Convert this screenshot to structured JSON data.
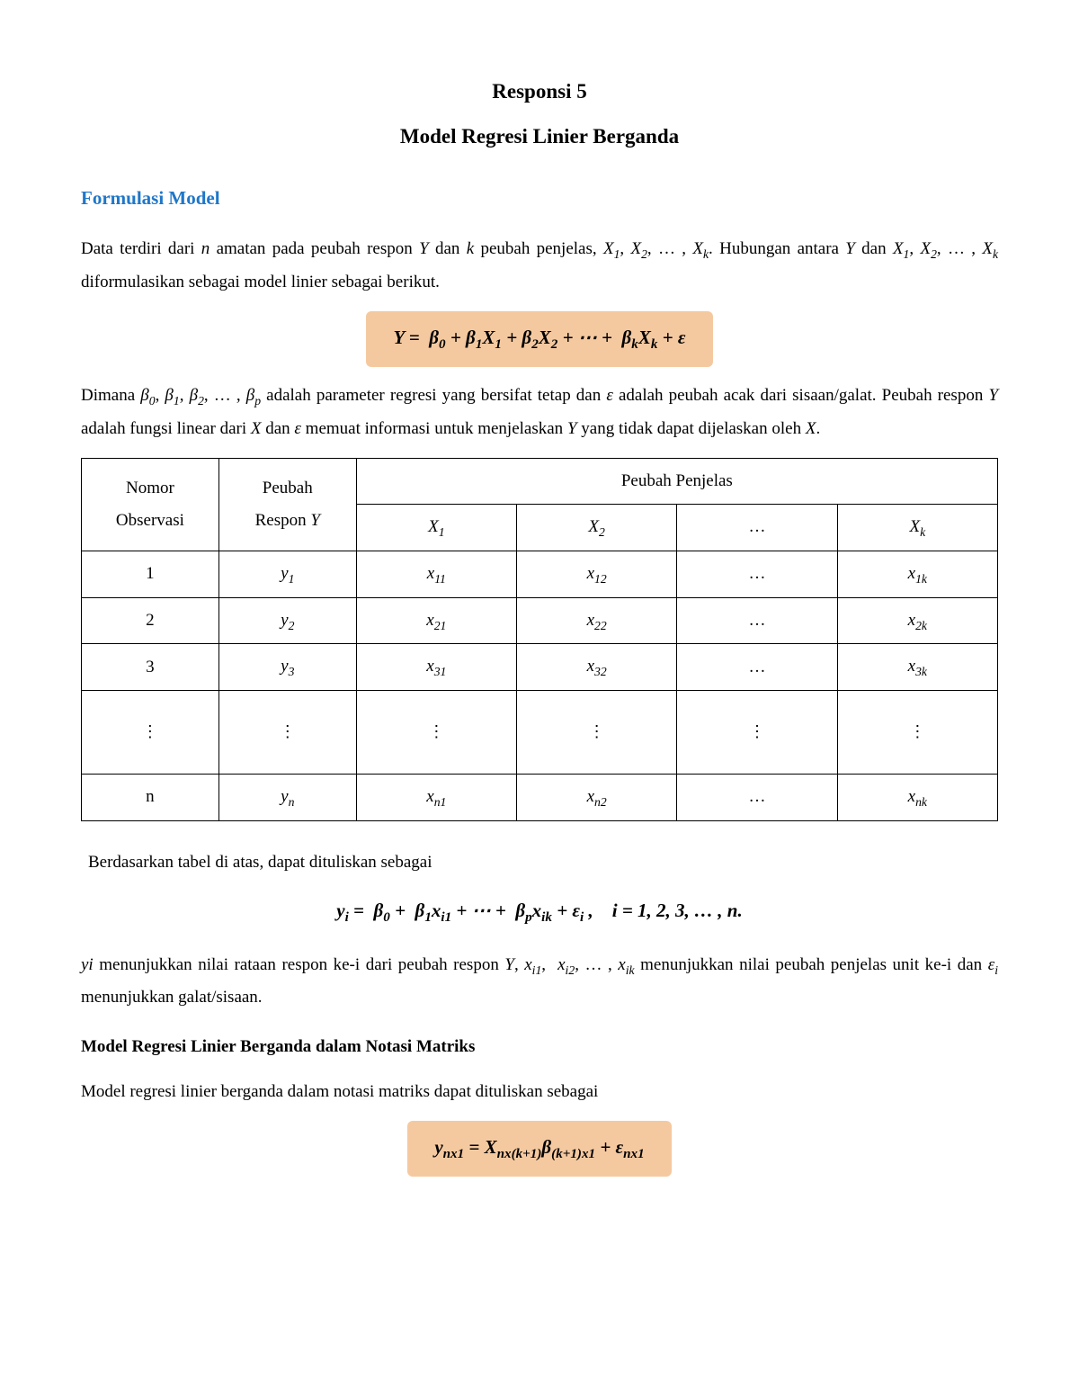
{
  "colors": {
    "heading_color": "#1f77c9",
    "formula_bg": "#f5c9a0",
    "text_color": "#000000",
    "page_bg": "#ffffff",
    "table_border": "#000000"
  },
  "typography": {
    "body_font": "Times New Roman",
    "body_size_pt": 14,
    "title_size_pt": 17,
    "heading_size_pt": 16,
    "line_height": 1.9
  },
  "title": {
    "line1": "Responsi 5",
    "line2": "Model Regresi Linier Berganda"
  },
  "section1_heading": "Formulasi Model",
  "para1_html": "Data terdiri dari <span class='ital'>n</span> amatan pada peubah respon <span class='ital'>Y</span> dan <span class='ital'>k</span> peubah penjelas, <span class='ital'>X</span><sub>1</sub>, <span class='ital'>X</span><sub>2</sub>, … , <span class='ital'>X<sub>k</sub></span>. Hubungan antara <span class='ital'>Y</span> dan <span class='ital'>X</span><sub>1</sub>, <span class='ital'>X</span><sub>2</sub>, … , <span class='ital'>X<sub>k</sub></span> diformulasikan sebagai model linier sebagai berikut.",
  "formula1_html": "Y = &nbsp;β<sub>0</sub> + β<sub>1</sub>X<sub>1</sub> + β<sub>2</sub>X<sub>2</sub> + ⋯ + &nbsp;β<sub>k</sub>X<sub>k</sub> + ε",
  "para2_html": "Dimana <span class='ital'>β</span><sub>0</sub>, <span class='ital'>β</span><sub>1</sub>, <span class='ital'>β</span><sub>2</sub>, … , <span class='ital'>β<sub>p</sub></span> adalah parameter regresi yang bersifat tetap dan <span class='ital'>ε</span> adalah peubah acak dari sisaan/galat. Peubah respon <span class='ital'>Y</span> adalah fungsi linear dari <span class='ital'>X</span> dan <span class='ital'>ε</span> memuat informasi untuk menjelaskan <span class='ital'>Y</span> yang tidak dapat dijelaskan oleh <span class='ital'>X</span>.",
  "table": {
    "header_top": {
      "col1": "Nomor",
      "col2": "Peubah",
      "col_span": "Peubah Penjelas"
    },
    "header_sub": {
      "col1": "Observasi",
      "col2_html": "Respon <span class='ital'>Y</span>",
      "x1_html": "<span class='ital'>X</span><sub>1</sub>",
      "x2_html": "<span class='ital'>X</span><sub>2</sub>",
      "dots": "…",
      "xk_html": "<span class='ital'>X<sub>k</sub></span>"
    },
    "rows": [
      {
        "n": "1",
        "y_html": "<span class='ital'>y</span><sub>1</sub>",
        "x1_html": "<span class='ital'>x</span><sub>11</sub>",
        "x2_html": "<span class='ital'>x</span><sub>12</sub>",
        "d": "…",
        "xk_html": "<span class='ital'>x</span><sub>1k</sub>"
      },
      {
        "n": "2",
        "y_html": "<span class='ital'>y</span><sub>2</sub>",
        "x1_html": "<span class='ital'>x</span><sub>21</sub>",
        "x2_html": "<span class='ital'>x</span><sub>22</sub>",
        "d": "…",
        "xk_html": "<span class='ital'>x</span><sub>2k</sub>"
      },
      {
        "n": "3",
        "y_html": "<span class='ital'>y</span><sub>3</sub>",
        "x1_html": "<span class='ital'>x</span><sub>31</sub>",
        "x2_html": "<span class='ital'>x</span><sub>32</sub>",
        "d": "…",
        "xk_html": "<span class='ital'>x</span><sub>3k</sub>"
      },
      {
        "n": "⋮",
        "y_html": "⋮",
        "x1_html": "⋮",
        "x2_html": "⋮",
        "d": "⋮",
        "xk_html": "⋮",
        "vdots": true
      },
      {
        "n": "n",
        "y_html": "<span class='ital'>y<sub>n</sub></span>",
        "x1_html": "<span class='ital'>x</span><sub>n1</sub>",
        "x2_html": "<span class='ital'>x</span><sub>n2</sub>",
        "d": "…",
        "xk_html": "<span class='ital'>x<sub>nk</sub></span>"
      }
    ],
    "col_widths_pct": [
      15,
      15,
      17.5,
      17.5,
      17.5,
      17.5
    ]
  },
  "para3": "Berdasarkan tabel di atas, dapat dituliskan sebagai",
  "formula2_html": "y<sub>i</sub> = &nbsp;β<sub>0</sub> + &nbsp;β<sub>1</sub>x<sub>i1</sub> + ⋯ + &nbsp;β<sub>p</sub>x<sub>ik</sub> + ε<sub>i</sub> , &nbsp;&nbsp; i = 1, 2, 3, … , n.",
  "para4_html": "<span class='ital'>yi</span> menunjukkan nilai rataan respon ke-i dari peubah respon <span class='ital'>Y</span>, <span class='ital'>x</span><sub>i1</sub>, &nbsp;<span class='ital'>x</span><sub>i2</sub>, … , <span class='ital'>x<sub>ik</sub></span> menunjukkan nilai peubah penjelas unit ke-i dan <span class='ital'>ε<sub>i</sub></span> menunjukkan galat/sisaan.",
  "subheading": "Model Regresi Linier Berganda dalam Notasi Matriks",
  "para5": "Model regresi linier berganda dalam notasi matriks dapat dituliskan sebagai",
  "formula3_html": "y<sub>nx1</sub> = X<sub>nx(k+1)</sub>β<sub>(k+1)x1</sub> + ε<sub>nx1</sub>"
}
